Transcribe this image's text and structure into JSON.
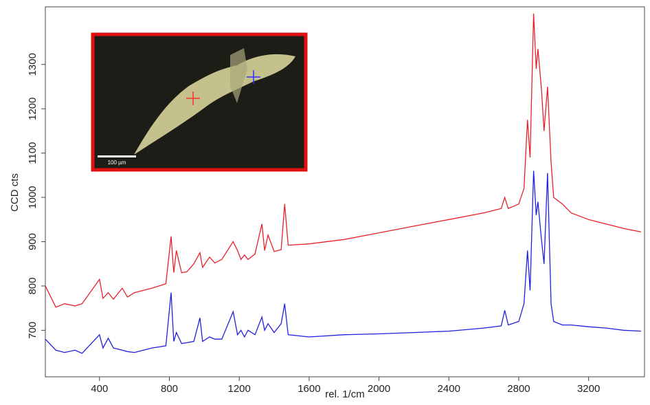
{
  "chart_data": {
    "type": "line",
    "xlabel": "rel. 1/cm",
    "ylabel": "CCD cts",
    "inset_scale_label": "100 µm",
    "x": [
      90,
      150,
      200,
      260,
      300,
      400,
      420,
      450,
      480,
      530,
      560,
      600,
      700,
      780,
      810,
      825,
      840,
      870,
      900,
      940,
      975,
      990,
      1030,
      1060,
      1100,
      1165,
      1190,
      1210,
      1230,
      1250,
      1290,
      1330,
      1345,
      1365,
      1400,
      1440,
      1460,
      1480,
      1600,
      1800,
      2000,
      2200,
      2400,
      2600,
      2700,
      2720,
      2740,
      2800,
      2830,
      2850,
      2865,
      2885,
      2900,
      2910,
      2930,
      2945,
      2965,
      2985,
      3000,
      3050,
      3100,
      3200,
      3300,
      3400,
      3500
    ],
    "series": [
      {
        "color": "#e8202a",
        "values": [
          800,
          752,
          760,
          755,
          760,
          815,
          772,
          785,
          770,
          795,
          775,
          785,
          795,
          805,
          912,
          830,
          880,
          830,
          832,
          850,
          875,
          842,
          865,
          852,
          860,
          900,
          880,
          860,
          870,
          860,
          872,
          940,
          880,
          915,
          878,
          882,
          985,
          892,
          895,
          905,
          920,
          935,
          950,
          965,
          975,
          1000,
          975,
          985,
          1020,
          1175,
          1090,
          1415,
          1290,
          1335,
          1245,
          1150,
          1250,
          1080,
          1000,
          985,
          965,
          950,
          940,
          930,
          922
        ]
      },
      {
        "color": "#1f1fe0",
        "values": [
          680,
          655,
          650,
          655,
          648,
          690,
          660,
          682,
          660,
          655,
          652,
          650,
          660,
          665,
          785,
          675,
          695,
          670,
          672,
          675,
          728,
          675,
          685,
          680,
          680,
          742,
          690,
          700,
          685,
          700,
          690,
          730,
          700,
          715,
          695,
          715,
          760,
          690,
          685,
          690,
          692,
          695,
          698,
          705,
          710,
          745,
          712,
          720,
          760,
          880,
          790,
          1060,
          960,
          990,
          905,
          850,
          1055,
          760,
          720,
          712,
          712,
          708,
          705,
          700,
          698
        ]
      }
    ],
    "xlim": [
      90,
      3520
    ],
    "ylim": [
      595,
      1430
    ],
    "xticks": [
      400,
      800,
      1200,
      1600,
      2000,
      2400,
      2800,
      3200
    ],
    "yticks": [
      700,
      800,
      900,
      1000,
      1100,
      1200,
      1300
    ]
  }
}
